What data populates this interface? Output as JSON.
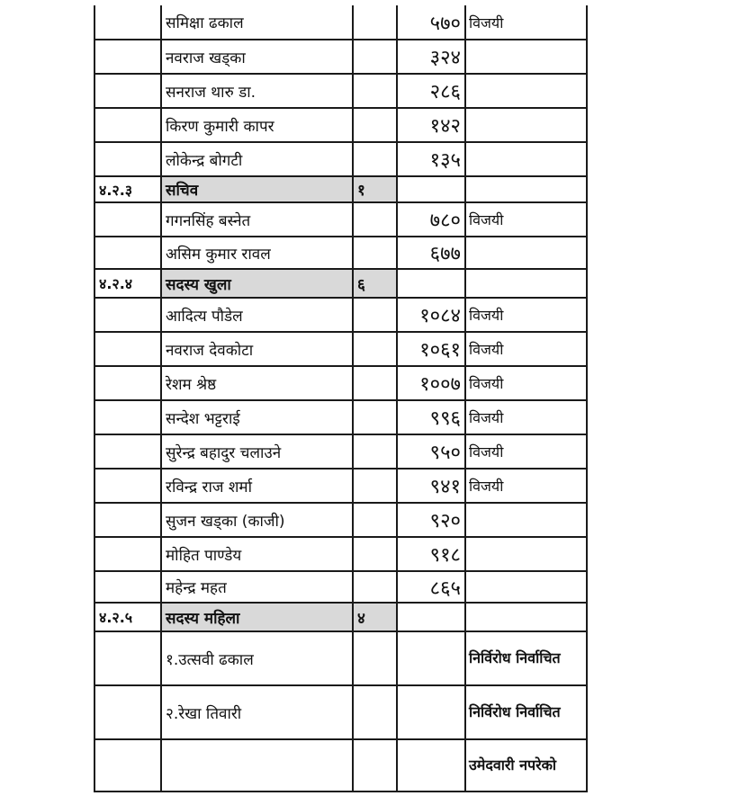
{
  "table": {
    "rows": [
      {
        "type": "candidate",
        "code": "",
        "name": "समिक्षा ढकाल",
        "seats": "",
        "votes": "५७०",
        "status": "विजयी",
        "h": 38
      },
      {
        "type": "candidate",
        "code": "",
        "name": "नवराज खड्का",
        "seats": "",
        "votes": "३२४",
        "status": "",
        "h": 38
      },
      {
        "type": "candidate",
        "code": "",
        "name": "सनराज थारु डा.",
        "seats": "",
        "votes": "२८६",
        "status": "",
        "h": 38
      },
      {
        "type": "candidate",
        "code": "",
        "name": "किरण कुमारी कापर",
        "seats": "",
        "votes": "१४२",
        "status": "",
        "h": 38
      },
      {
        "type": "candidate",
        "code": "",
        "name": "लोकेन्द्र बोगटी",
        "seats": "",
        "votes": "१३५",
        "status": "",
        "h": 38
      },
      {
        "type": "section",
        "code": "४.२.३",
        "name": "सचिव",
        "seats": "१",
        "votes": "",
        "status": "",
        "h": 29
      },
      {
        "type": "candidate",
        "code": "",
        "name": "गगनसिंह बस्नेत",
        "seats": "",
        "votes": "७८०",
        "status": "विजयी",
        "h": 38
      },
      {
        "type": "candidate",
        "code": "",
        "name": "असिम कुमार रावल",
        "seats": "",
        "votes": "६७७",
        "status": "",
        "h": 36
      },
      {
        "type": "section",
        "code": "४.२.४",
        "name": "सदस्य खुला",
        "seats": "६",
        "votes": "",
        "status": "",
        "h": 32
      },
      {
        "type": "candidate",
        "code": "",
        "name": "आदित्य पौडेल",
        "seats": "",
        "votes": "१०८४",
        "status": "विजयी",
        "h": 38
      },
      {
        "type": "candidate",
        "code": "",
        "name": "नवराज देवकोटा",
        "seats": "",
        "votes": "१०६१",
        "status": "विजयी",
        "h": 38
      },
      {
        "type": "candidate",
        "code": "",
        "name": "रेशम श्रेष्ठ",
        "seats": "",
        "votes": "१००७",
        "status": "विजयी",
        "h": 38
      },
      {
        "type": "candidate",
        "code": "",
        "name": "सन्देश भट्टराई",
        "seats": "",
        "votes": "९९६",
        "status": "विजयी",
        "h": 38
      },
      {
        "type": "candidate",
        "code": "",
        "name": "सुरेन्द्र बहादुर चलाउने",
        "seats": "",
        "votes": "९५०",
        "status": "विजयी",
        "h": 38
      },
      {
        "type": "candidate",
        "code": "",
        "name": "रविन्द्र राज शर्मा",
        "seats": "",
        "votes": "९४१",
        "status": "विजयी",
        "h": 38
      },
      {
        "type": "candidate",
        "code": "",
        "name": "सुजन खड्का (काजी)",
        "seats": "",
        "votes": "९२०",
        "status": "",
        "h": 38
      },
      {
        "type": "candidate",
        "code": "",
        "name": "मोहित पाण्डेय",
        "seats": "",
        "votes": "९१८",
        "status": "",
        "h": 38
      },
      {
        "type": "candidate",
        "code": "",
        "name": "महेन्द्र महत",
        "seats": "",
        "votes": "८६५",
        "status": "",
        "h": 35
      },
      {
        "type": "section",
        "code": "४.२.५",
        "name": "सदस्य महिला",
        "seats": "४",
        "votes": "",
        "status": "",
        "h": 32
      },
      {
        "type": "candidate",
        "code": "",
        "name": "१.उत्सवी ढकाल",
        "seats": "",
        "votes": "",
        "status": "निर्विरोध निर्वाचित",
        "bold": true,
        "h": 60
      },
      {
        "type": "candidate",
        "code": "",
        "name": "२.रेखा तिवारी",
        "seats": "",
        "votes": "",
        "status": "निर्विरोध निर्वाचित",
        "bold": true,
        "h": 60
      },
      {
        "type": "candidate",
        "code": "",
        "name": "",
        "seats": "",
        "votes": "",
        "status": "उमेदवारी नपरेको",
        "bold": true,
        "h": 58
      }
    ]
  }
}
